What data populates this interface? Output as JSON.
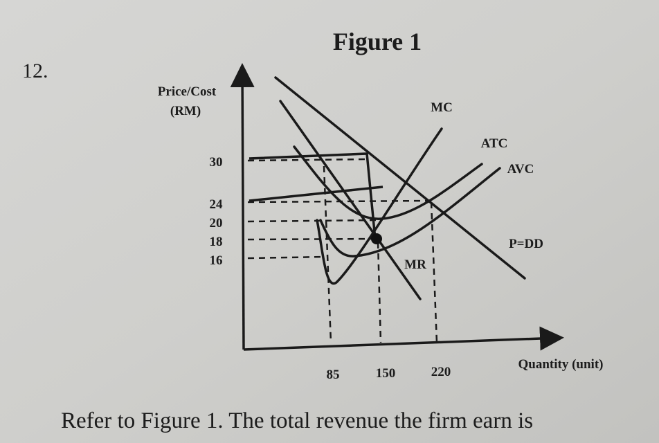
{
  "question_number": "12.",
  "figure": {
    "title": "Figure 1",
    "y_axis_label": [
      "Price/Cost",
      "(RM)"
    ],
    "x_axis_label": "Quantity (unit)",
    "y_ticks": [
      "30",
      "24",
      "20",
      "18",
      "16"
    ],
    "x_ticks": [
      "85",
      "150",
      "220"
    ],
    "curve_labels": {
      "mc": "MC",
      "atc": "ATC",
      "avc": "AVC",
      "dd": "P=DD",
      "mr": "MR"
    }
  },
  "question_text": "Refer to Figure 1. The total revenue the firm earn is"
}
